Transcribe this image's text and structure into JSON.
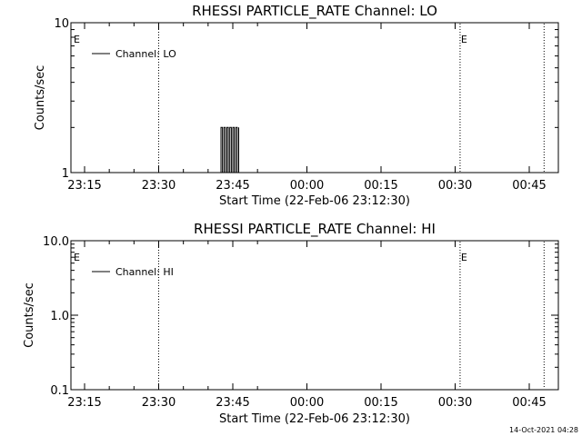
{
  "footer": {
    "timestamp": "14-Oct-2021 04:28"
  },
  "colors": {
    "background": "#ffffff",
    "foreground": "#000000"
  },
  "chart_data": [
    {
      "type": "line",
      "title": "RHESSI PARTICLE_RATE Channel: LO",
      "xlabel": "Start Time (22-Feb-06 23:12:30)",
      "ylabel": "Counts/sec",
      "yscale": "log",
      "ylim": [
        1,
        10
      ],
      "xlim_minutes": [
        -1.5,
        37.5
      ],
      "x_ticks": [
        {
          "label": "23:15",
          "value": 0
        },
        {
          "label": "23:30",
          "value": 15
        },
        {
          "label": "23:45",
          "value": 30
        },
        {
          "label": "00:00",
          "value": 45
        },
        {
          "label": "00:15",
          "value": 60
        },
        {
          "label": "00:30",
          "value": 75
        },
        {
          "label": "00:45",
          "value": 90
        }
      ],
      "y_ticks": [
        {
          "label": "1",
          "value": 1
        },
        {
          "label": "10",
          "value": 10
        }
      ],
      "legend": {
        "entries": [
          "Channel: LO"
        ],
        "position": "top-left"
      },
      "markers": [
        {
          "label": "E",
          "time": "23:15"
        },
        {
          "label": "E",
          "time": "00:31"
        }
      ],
      "vertical_dotted_lines": [
        "23:30",
        "00:31",
        "00:48"
      ],
      "series": [
        {
          "name": "Channel: LO",
          "x": [
            "23:42.3",
            "23:42.6",
            "23:42.9",
            "23:43.2",
            "23:43.5",
            "23:43.8",
            "23:44.1",
            "23:44.4",
            "23:44.7",
            "23:45.0",
            "23:45.3",
            "23:45.6",
            "23:45.9",
            "23:46.2"
          ],
          "y": [
            1,
            2,
            1,
            2,
            1,
            2,
            1,
            2,
            1,
            2,
            1,
            2,
            1,
            2
          ]
        }
      ]
    },
    {
      "type": "line",
      "title": "RHESSI PARTICLE_RATE Channel: HI",
      "xlabel": "Start Time (22-Feb-06 23:12:30)",
      "ylabel": "Counts/sec",
      "yscale": "log",
      "ylim": [
        0.1,
        10
      ],
      "x_ticks": [
        {
          "label": "23:15",
          "value": 0
        },
        {
          "label": "23:30",
          "value": 15
        },
        {
          "label": "23:45",
          "value": 30
        },
        {
          "label": "00:00",
          "value": 45
        },
        {
          "label": "00:15",
          "value": 60
        },
        {
          "label": "00:30",
          "value": 75
        },
        {
          "label": "00:45",
          "value": 90
        }
      ],
      "y_ticks": [
        {
          "label": "0.1",
          "value": 0.1
        },
        {
          "label": "1.0",
          "value": 1.0
        },
        {
          "label": "10.0",
          "value": 10.0
        }
      ],
      "legend": {
        "entries": [
          "Channel: HI"
        ],
        "position": "top-left"
      },
      "markers": [
        {
          "label": "E",
          "time": "23:15"
        },
        {
          "label": "E",
          "time": "00:31"
        }
      ],
      "vertical_dotted_lines": [
        "23:30",
        "00:31",
        "00:48"
      ],
      "series": [
        {
          "name": "Channel: HI",
          "x": [],
          "y": []
        }
      ]
    }
  ]
}
